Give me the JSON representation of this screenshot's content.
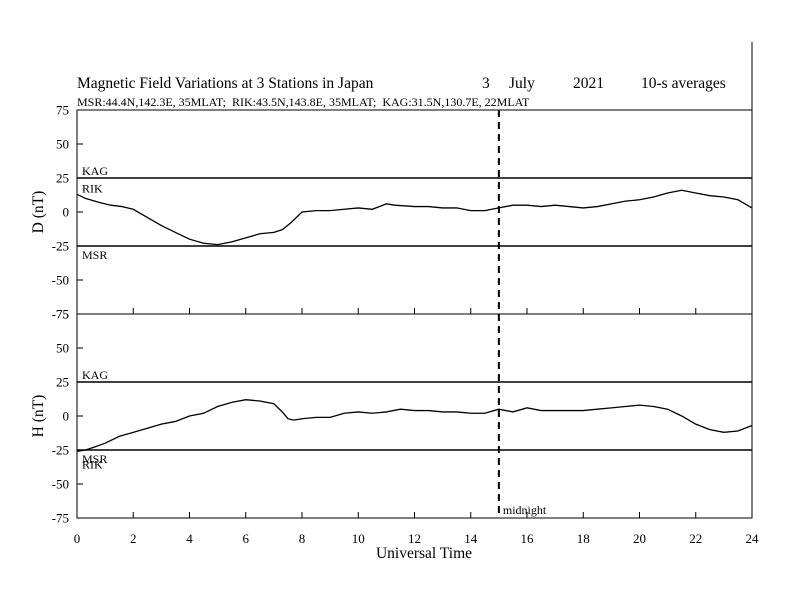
{
  "chart_data": {
    "type": "line",
    "title": {
      "main": "Magnetic Field Variations at 3 Stations in Japan",
      "day": "3",
      "month": "July",
      "year": "2021",
      "averaging": "10-s averages"
    },
    "subtitle": "MSR:44.4N,142.3E, 35MLAT;  RIK:43.5N,143.8E, 35MLAT;  KAG:31.5N,130.7E, 22MLAT",
    "xlabel": "Universal Time",
    "xlim": [
      0,
      24
    ],
    "x_ticks": [
      "0",
      "2",
      "4",
      "6",
      "8",
      "10",
      "12",
      "14",
      "16",
      "18",
      "20",
      "22",
      "24"
    ],
    "y_ticks": [
      "75",
      "50",
      "25",
      "0",
      "-25",
      "-50",
      "-75"
    ],
    "annotation": {
      "label": "midnight",
      "x": 15
    },
    "panels": [
      {
        "ylabel": "D (nT)",
        "ylim": [
          -75,
          75
        ],
        "reference_lines": [
          {
            "station": "KAG",
            "y": 25
          },
          {
            "station": "MSR",
            "y": -25
          }
        ],
        "series": [
          {
            "name": "KAG",
            "x": [
              0,
              24
            ],
            "y": [
              25,
              25
            ]
          },
          {
            "name": "RIK",
            "x": [
              0,
              0.3,
              0.8,
              1.2,
              1.6,
              2,
              2.5,
              3,
              3.5,
              4,
              4.5,
              5,
              5.5,
              6,
              6.5,
              7,
              7.3,
              7.6,
              8,
              8.5,
              9,
              9.5,
              10,
              10.5,
              11,
              11.3,
              12,
              12.5,
              13,
              13.5,
              14,
              14.5,
              15,
              15.5,
              16,
              16.5,
              17,
              17.5,
              18,
              18.5,
              19,
              19.5,
              20,
              20.5,
              21,
              21.5,
              22,
              22.5,
              23,
              23.5,
              24
            ],
            "y": [
              13,
              10,
              7,
              5,
              4,
              2,
              -4,
              -10,
              -15,
              -20,
              -23,
              -24,
              -22,
              -19,
              -16,
              -15,
              -13,
              -8,
              0,
              1,
              1,
              2,
              3,
              2,
              6,
              5,
              4,
              4,
              3,
              3,
              1,
              1,
              3,
              5,
              5,
              4,
              5,
              4,
              3,
              4,
              6,
              8,
              9,
              11,
              14,
              16,
              14,
              12,
              11,
              9,
              3
            ]
          },
          {
            "name": "MSR",
            "x": [
              0,
              1,
              2,
              3,
              4,
              5,
              6,
              7,
              8,
              9,
              10,
              11,
              12,
              13,
              14,
              15,
              16,
              17,
              18,
              19,
              20,
              21,
              22,
              23,
              24
            ],
            "y": [
              -25,
              -25,
              -25,
              -25,
              -25,
              -25,
              -25,
              -25,
              -25,
              -25,
              -25,
              -25,
              -25,
              -25,
              -25,
              -25,
              -25,
              -25,
              -25,
              -25,
              -25,
              -25,
              -25,
              -25,
              -25
            ]
          }
        ]
      },
      {
        "ylabel": "H (nT)",
        "ylim": [
          -75,
          75
        ],
        "reference_lines": [
          {
            "station": "KAG",
            "y": 25
          },
          {
            "station": "MSR",
            "y": -25
          }
        ],
        "series": [
          {
            "name": "KAG",
            "x": [
              0,
              24
            ],
            "y": [
              25,
              25
            ]
          },
          {
            "name": "RIK",
            "x": [
              0,
              0.3,
              0.6,
              1,
              1.5,
              2,
              2.5,
              3,
              3.5,
              4,
              4.5,
              5,
              5.5,
              6,
              6.5,
              7,
              7.3,
              7.5,
              7.7,
              8,
              8.5,
              9,
              9.5,
              10,
              10.5,
              11,
              11.5,
              12,
              12.5,
              13,
              13.5,
              14,
              14.5,
              15,
              15.5,
              16,
              16.5,
              17,
              17.5,
              18,
              18.5,
              19,
              19.5,
              20,
              20.5,
              21,
              21.5,
              22,
              22.5,
              23,
              23.5,
              24
            ],
            "y": [
              -26,
              -25,
              -23,
              -20,
              -15,
              -12,
              -9,
              -6,
              -4,
              0,
              2,
              7,
              10,
              12,
              11,
              9,
              3,
              -2,
              -3,
              -2,
              -1,
              -1,
              2,
              3,
              2,
              3,
              5,
              4,
              4,
              3,
              3,
              2,
              2,
              5,
              3,
              6,
              4,
              4,
              4,
              4,
              5,
              6,
              7,
              8,
              7,
              5,
              0,
              -6,
              -10,
              -12,
              -11,
              -7
            ]
          },
          {
            "name": "MSR",
            "x": [
              0,
              1,
              2,
              3,
              4,
              5,
              6,
              7,
              8,
              9,
              10,
              11,
              12,
              13,
              14,
              15,
              16,
              17,
              18,
              19,
              20,
              21,
              22,
              23,
              24
            ],
            "y": [
              -25,
              -25,
              -25,
              -25,
              -25,
              -25,
              -25,
              -25,
              -25,
              -25,
              -25,
              -25,
              -25,
              -25,
              -25,
              -25,
              -25,
              -25,
              -25,
              -25,
              -25,
              -25,
              -25,
              -25,
              -25
            ]
          }
        ]
      }
    ]
  }
}
